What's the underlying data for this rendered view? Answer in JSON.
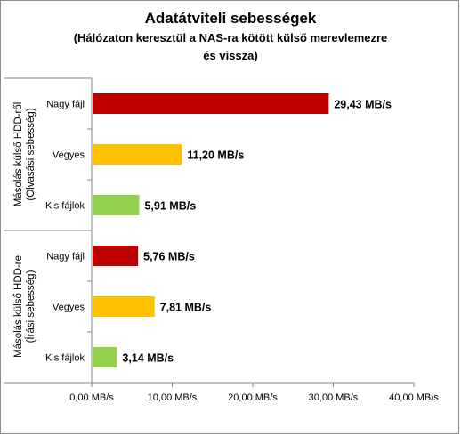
{
  "chart_data": {
    "type": "bar",
    "orientation": "horizontal",
    "title": "Adatátviteli sebességek",
    "subtitle": [
      "(Hálózaton keresztül a NAS-ra kötött külső merevlemezre",
      "és vissza)"
    ],
    "groups": [
      {
        "label_lines": [
          "Másolás külső HDD-ről",
          "(Olvasási sebesség)"
        ],
        "bars": [
          {
            "category": "Nagy fájl",
            "value": 29.43,
            "label": "29,43 MB/s",
            "color": "#c00000"
          },
          {
            "category": "Vegyes",
            "value": 11.2,
            "label": "11,20 MB/s",
            "color": "#ffc000"
          },
          {
            "category": "Kis fájlok",
            "value": 5.91,
            "label": "5,91 MB/s",
            "color": "#92d050"
          }
        ]
      },
      {
        "label_lines": [
          "Másolás külső HDD-re",
          "(Írási sebesség)"
        ],
        "bars": [
          {
            "category": "Nagy fájl",
            "value": 5.76,
            "label": "5,76 MB/s",
            "color": "#c00000"
          },
          {
            "category": "Vegyes",
            "value": 7.81,
            "label": "7,81 MB/s",
            "color": "#ffc000"
          },
          {
            "category": "Kis fájlok",
            "value": 3.14,
            "label": "3,14 MB/s",
            "color": "#92d050"
          }
        ]
      }
    ],
    "xlim": [
      0,
      40
    ],
    "xticks": [
      0,
      10,
      20,
      30,
      40
    ],
    "xtick_labels": [
      "0,00 MB/s",
      "10,00 MB/s",
      "20,00 MB/s",
      "30,00 MB/s",
      "40,00 MB/s"
    ],
    "grid": false,
    "legend": "none"
  }
}
